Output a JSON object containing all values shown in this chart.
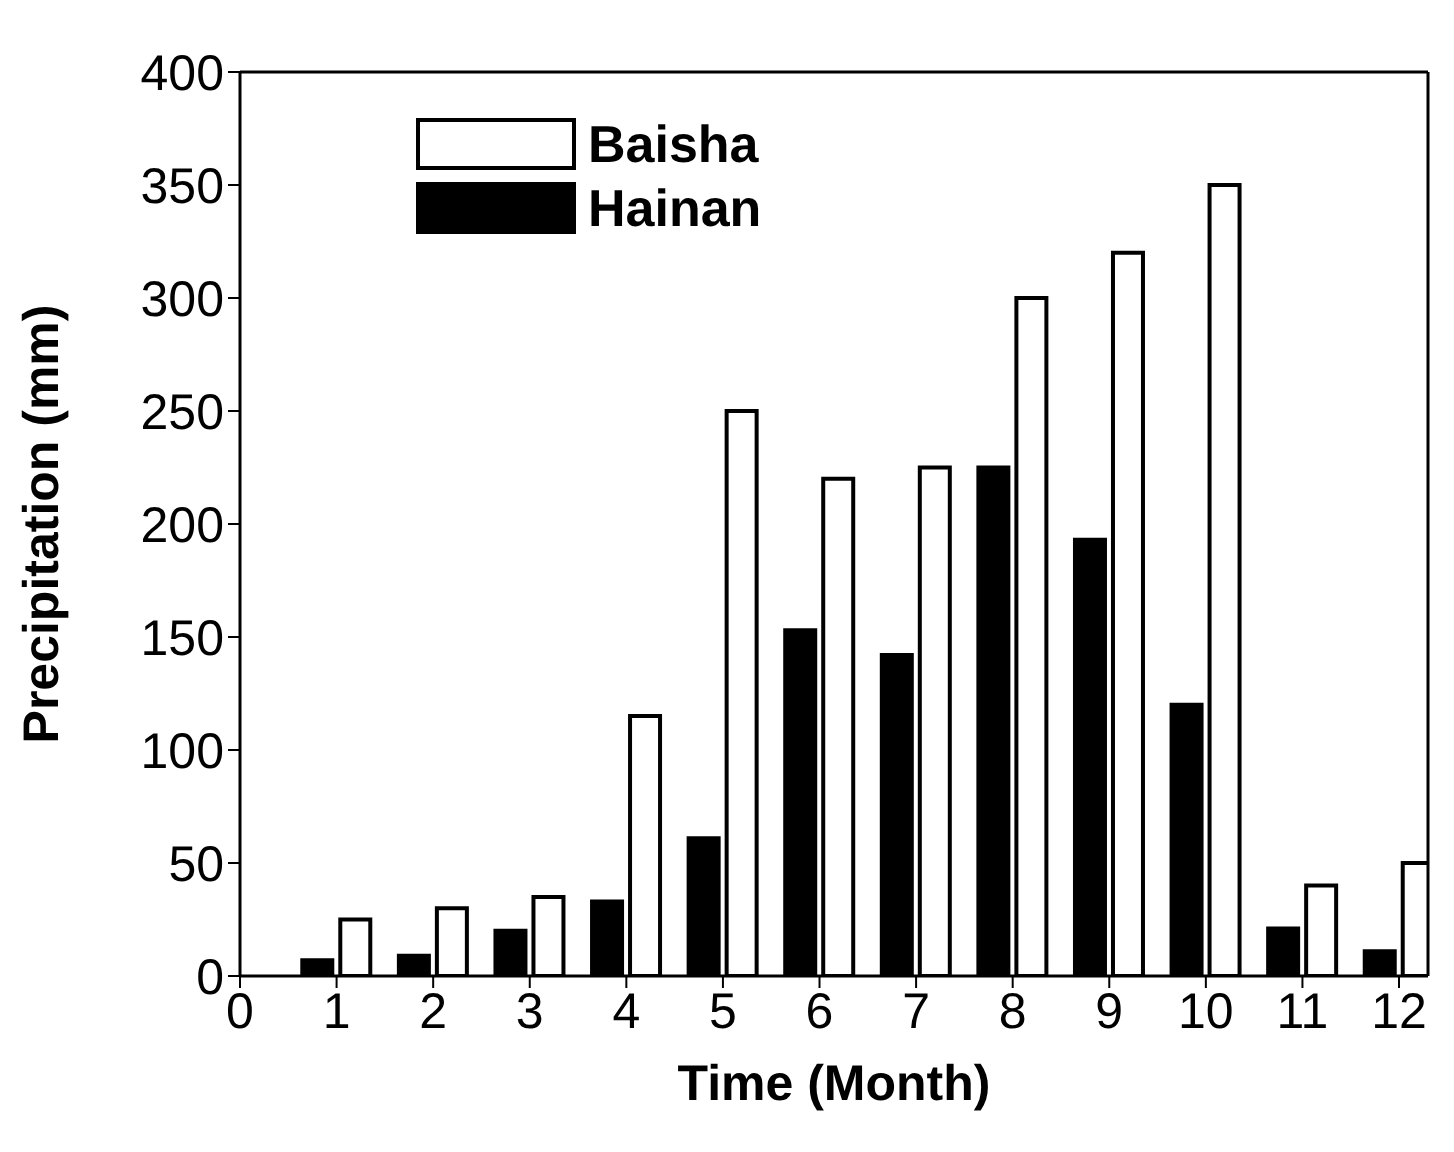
{
  "chart_data": {
    "type": "bar",
    "xlabel": "Time (Month)",
    "ylabel": "Precipitation (mm)",
    "x": [
      1,
      2,
      3,
      4,
      5,
      6,
      7,
      8,
      9,
      10,
      11,
      12
    ],
    "series": [
      {
        "name": "Hainan",
        "color": "#000000",
        "values": [
          7,
          9,
          20,
          33,
          61,
          153,
          142,
          225,
          193,
          120,
          21,
          11
        ]
      },
      {
        "name": "Baisha",
        "color": "#ffffff",
        "values": [
          25,
          30,
          35,
          115,
          250,
          220,
          225,
          300,
          320,
          350,
          40,
          50
        ]
      }
    ],
    "xlim": [
      0,
      12.3
    ],
    "xticks": [
      0,
      1,
      2,
      3,
      4,
      5,
      6,
      7,
      8,
      9,
      10,
      11,
      12
    ],
    "ylim": [
      0,
      400
    ],
    "yticks": [
      0,
      50,
      100,
      150,
      200,
      250,
      300,
      350,
      400
    ],
    "grid": false,
    "legend": "top left"
  }
}
